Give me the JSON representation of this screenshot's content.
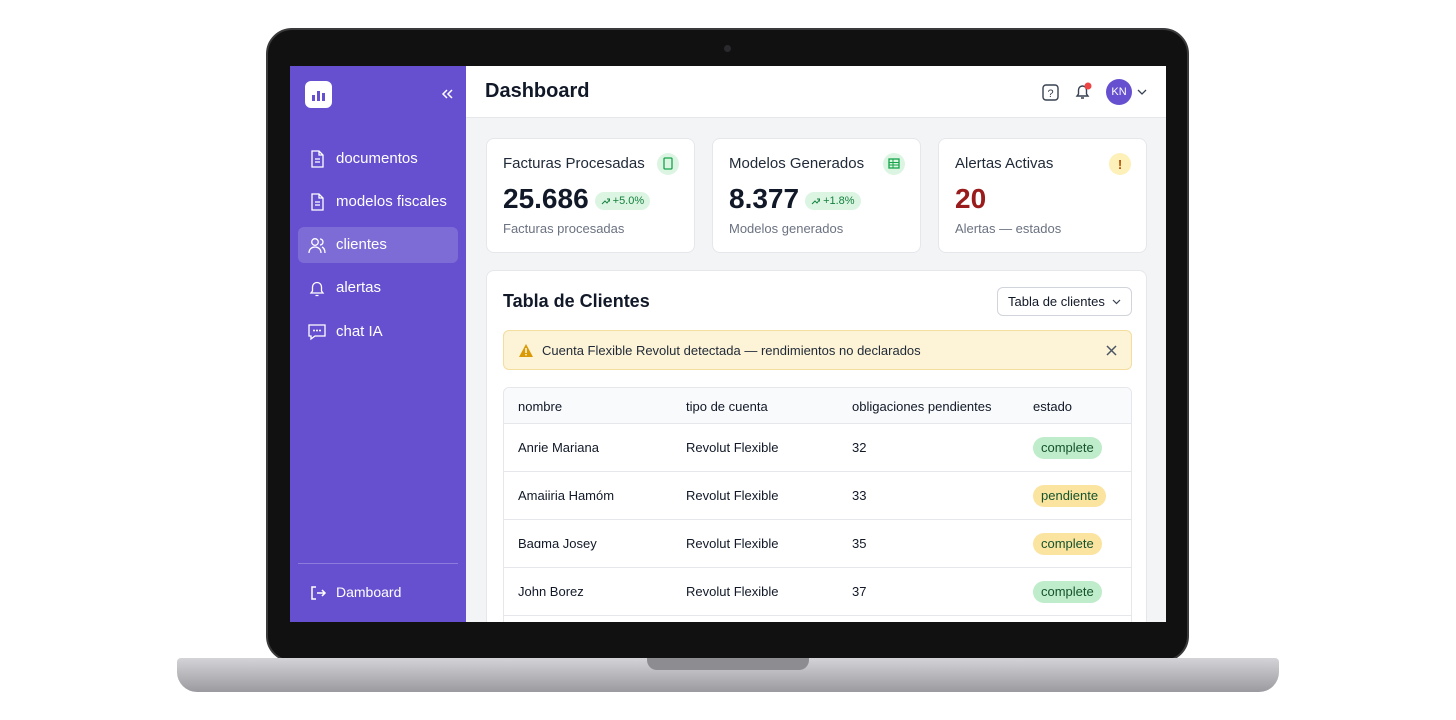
{
  "sidebar": {
    "nav": [
      "documentos",
      "modelos fiscales",
      "clientes",
      "alertas",
      "chat IA"
    ],
    "active": 2,
    "footer": "Damboard"
  },
  "header": {
    "title": "Dashboard",
    "avatar": "KN"
  },
  "cards": [
    {
      "title": "Facturas Procesadas",
      "value": "25.686",
      "change": "+5.0%",
      "caption": "Facturas procesadas"
    },
    {
      "title": "Modelos Generados",
      "value": "8.377",
      "change": "+1.8%",
      "caption": "Modelos generados"
    },
    {
      "title": "Alertas Activas",
      "value": "20",
      "caption": "Alertas — estados"
    }
  ],
  "table": {
    "title": "Tabla de Clientes",
    "dropdown": "Tabla de clientes",
    "alert": "Cuenta Flexible Revolut detectada — rendimientos no declarados",
    "columns": [
      "nombre",
      "tipo de cuenta",
      "obligaciones pendientes",
      "estado"
    ],
    "rows": [
      {
        "name": "Anrie Mariana",
        "account": "Revolut Flexible",
        "pending": 32,
        "status": "complete",
        "color": "#bfeccb"
      },
      {
        "name": "Amaiiria Hamóm",
        "account": "Revolut Flexible",
        "pending": 33,
        "status": "pendiente",
        "color": "#fbe3a0"
      },
      {
        "name": "Baɑma Josey",
        "account": "Revolut Flexible",
        "pending": 35,
        "status": "complete",
        "color": "#fbe3a0"
      },
      {
        "name": "John Borez",
        "account": "Revolut Flexible",
        "pending": 37,
        "status": "complete",
        "color": "#bfeccb"
      }
    ]
  }
}
